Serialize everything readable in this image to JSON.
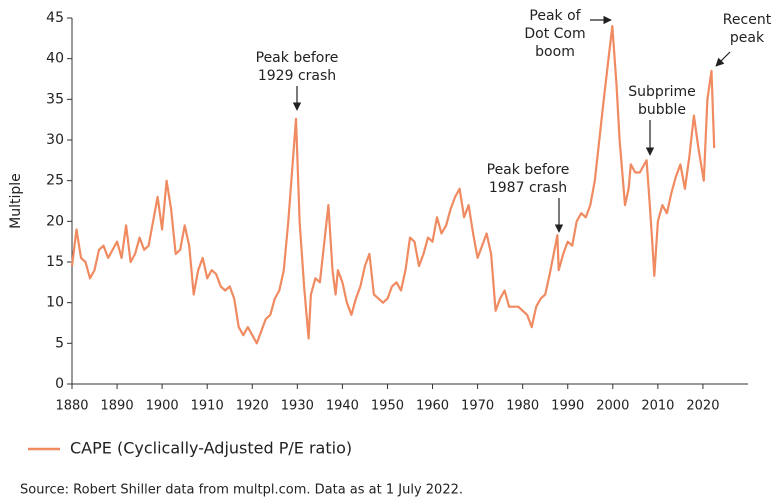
{
  "chart_data": {
    "type": "line",
    "y_label": "Multiple",
    "xlim": [
      1880,
      2030
    ],
    "ylim": [
      0,
      45
    ],
    "xticks": [
      1880,
      1890,
      1900,
      1910,
      1920,
      1930,
      1940,
      1950,
      1960,
      1970,
      1980,
      1990,
      2000,
      2010,
      2020
    ],
    "yticks": [
      0,
      5,
      10,
      15,
      20,
      25,
      30,
      35,
      40,
      45
    ],
    "grid": false,
    "series": [
      {
        "name": "CAPE (Cyclically-Adjusted P/E ratio)",
        "color": "#f08a61",
        "x": [
          1880,
          1881,
          1882,
          1883,
          1884,
          1885,
          1886,
          1887,
          1888,
          1889,
          1890,
          1891,
          1892,
          1893,
          1894,
          1895,
          1896,
          1897,
          1898,
          1899,
          1900,
          1901,
          1902,
          1903,
          1904,
          1905,
          1906,
          1907,
          1908,
          1909,
          1910,
          1911,
          1912,
          1913,
          1914,
          1915,
          1916,
          1917,
          1918,
          1919,
          1920,
          1921,
          1922,
          1923,
          1924,
          1925,
          1926,
          1927,
          1928,
          1929.7,
          1930.5,
          1931.5,
          1932.5,
          1933,
          1934,
          1935,
          1936.9,
          1937.8,
          1938.5,
          1939,
          1940,
          1941,
          1942,
          1943,
          1944,
          1945,
          1946,
          1947,
          1948,
          1949,
          1950,
          1951,
          1952,
          1953,
          1954,
          1955,
          1956,
          1957,
          1958,
          1959,
          1960,
          1961,
          1962,
          1963,
          1964,
          1965,
          1966,
          1967,
          1968,
          1969,
          1970,
          1971,
          1972,
          1973,
          1974,
          1975,
          1976,
          1977,
          1978,
          1979,
          1980,
          1981,
          1982,
          1983,
          1984,
          1985,
          1986,
          1987.7,
          1988,
          1989,
          1990,
          1991,
          1992,
          1993,
          1994,
          1995,
          1996,
          1997,
          1998,
          1999.9,
          2000.8,
          2001.5,
          2002.7,
          2003.5,
          2004,
          2005,
          2006,
          2007.5,
          2008.2,
          2008.8,
          2009.2,
          2010,
          2011,
          2012,
          2013,
          2014,
          2015,
          2016,
          2017,
          2018,
          2019,
          2020.2,
          2021,
          2021.9,
          2022.5
        ],
        "values": [
          14.5,
          19,
          15.5,
          15,
          13,
          14,
          16.5,
          17,
          15.5,
          16.5,
          17.5,
          15.5,
          19.5,
          15,
          16,
          18,
          16.5,
          17,
          20,
          23,
          19,
          25,
          21.5,
          16,
          16.5,
          19.5,
          17,
          11,
          14,
          15.5,
          13,
          14,
          13.5,
          12,
          11.5,
          12,
          10.5,
          7,
          6,
          7,
          6,
          5,
          6.5,
          8,
          8.5,
          10.5,
          11.5,
          14,
          20,
          32.6,
          20,
          12,
          5.6,
          11,
          13,
          12.5,
          22,
          14,
          11,
          14,
          12.5,
          10,
          8.5,
          10.5,
          12,
          14.5,
          16,
          11,
          10.5,
          10,
          10.5,
          12,
          12.5,
          11.5,
          14,
          18,
          17.5,
          14.5,
          16,
          18,
          17.5,
          20.5,
          18.5,
          19.5,
          21.5,
          23,
          24,
          20.5,
          22,
          18.5,
          15.5,
          17,
          18.5,
          16,
          9,
          10.5,
          11.5,
          9.5,
          9.5,
          9.5,
          9,
          8.5,
          7,
          9.5,
          10.5,
          11,
          13.5,
          18.3,
          14,
          16,
          17.5,
          17,
          20,
          21,
          20.5,
          22,
          25,
          30,
          35,
          44,
          37,
          30,
          22,
          24,
          27,
          26,
          26,
          27.5,
          22,
          17,
          13.3,
          20,
          22,
          21,
          23.5,
          25.5,
          27,
          24,
          28,
          33,
          29,
          25,
          35,
          38.5,
          29
        ]
      }
    ],
    "annotations": [
      {
        "lines": [
          "Peak before",
          "1929 crash"
        ]
      },
      {
        "lines": [
          "Peak of",
          "Dot Com",
          "boom"
        ]
      },
      {
        "lines": [
          "Subprime",
          "bubble"
        ]
      },
      {
        "lines": [
          "Peak before",
          "1987 crash"
        ]
      },
      {
        "lines": [
          "Recent",
          "peak"
        ]
      }
    ],
    "source": "Source: Robert Shiller data from multpl.com. Data as at 1 July 2022."
  }
}
